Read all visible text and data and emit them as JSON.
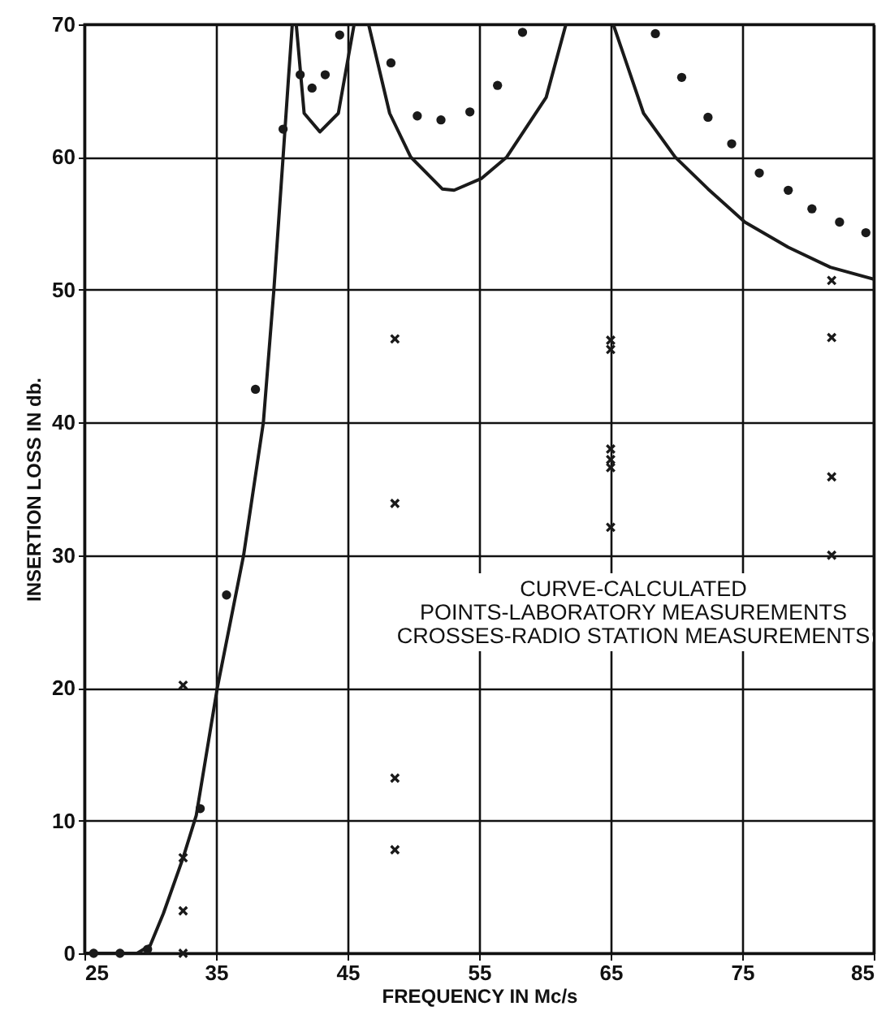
{
  "chart_data": {
    "type": "scatter",
    "xlabel": "FREQUENCY IN Mc/s",
    "ylabel": "INSERTION LOSS IN db.",
    "annotations": [
      "CURVE-CALCULATED",
      "POINTS-LABORATORY MEASUREMENTS",
      "CROSSES-RADIO STATION MEASUREMENTS"
    ],
    "xlim": [
      25,
      85
    ],
    "xticks": [
      25,
      35,
      45,
      55,
      65,
      75,
      85
    ],
    "ylim": [
      0,
      70
    ],
    "yticks": [
      0,
      10,
      20,
      30,
      40,
      50,
      60,
      70
    ],
    "grid": true,
    "series": [
      {
        "type": "line",
        "color": "#1a1a1a",
        "marker": "none",
        "x": [
          25,
          29,
          30,
          31,
          32.5,
          33.5,
          35.1,
          37.1,
          38.6,
          39.4,
          40.1,
          40.5,
          40.8,
          40.95,
          41.1,
          41.7,
          42.9,
          44.3,
          45.5,
          45.8,
          46.6,
          48.2,
          49.8,
          52.2,
          53.1,
          55.2,
          57.1,
          60.1,
          61.6,
          63,
          65.2,
          67.5,
          69.9,
          72.4,
          75.2,
          78.5,
          81.7,
          85
        ],
        "values": [
          0,
          0,
          0.6,
          3,
          7.2,
          10.4,
          20,
          30,
          40,
          50,
          60,
          65.8,
          70,
          null,
          70,
          63.3,
          61.9,
          63.3,
          70,
          null,
          70,
          63.3,
          60,
          57.6,
          57.5,
          58.4,
          60,
          64.5,
          70,
          null,
          70,
          63.3,
          60,
          57.6,
          55.1,
          53.2,
          51.7,
          50.8
        ]
      },
      {
        "color": "#1a1a1a",
        "marker": "circle",
        "x": [
          25.7,
          27.7,
          29.8,
          33.8,
          35.8,
          38,
          40.1,
          41.4,
          42.3,
          43.3,
          44.4,
          48.3,
          50.3,
          52.1,
          54.3,
          56.4,
          58.3,
          68.4,
          70.4,
          72.4,
          74.2,
          76.3,
          78.5,
          80.3,
          82.4,
          84.4
        ],
        "values": [
          0,
          0,
          0.3,
          10.9,
          27,
          42.5,
          62.1,
          66.2,
          65.2,
          66.2,
          69.2,
          67.1,
          63.1,
          62.8,
          63.4,
          65.4,
          69.4,
          69.3,
          66,
          63,
          61,
          58.8,
          57.5,
          56.1,
          55.1,
          54.3
        ]
      },
      {
        "color": "#1a1a1a",
        "marker": "cross",
        "x": [
          32.5,
          32.5,
          32.5,
          32.5,
          48.6,
          48.6,
          48.6,
          48.6,
          65,
          65,
          65,
          65,
          65,
          65,
          81.8,
          81.8,
          81.8,
          81.8
        ],
        "values": [
          0,
          3.2,
          7.2,
          20.2,
          7.8,
          13.2,
          33.9,
          46.3,
          46.2,
          45.5,
          38,
          37.2,
          36.6,
          32.1,
          50.7,
          46.4,
          35.9,
          30
        ]
      }
    ]
  }
}
